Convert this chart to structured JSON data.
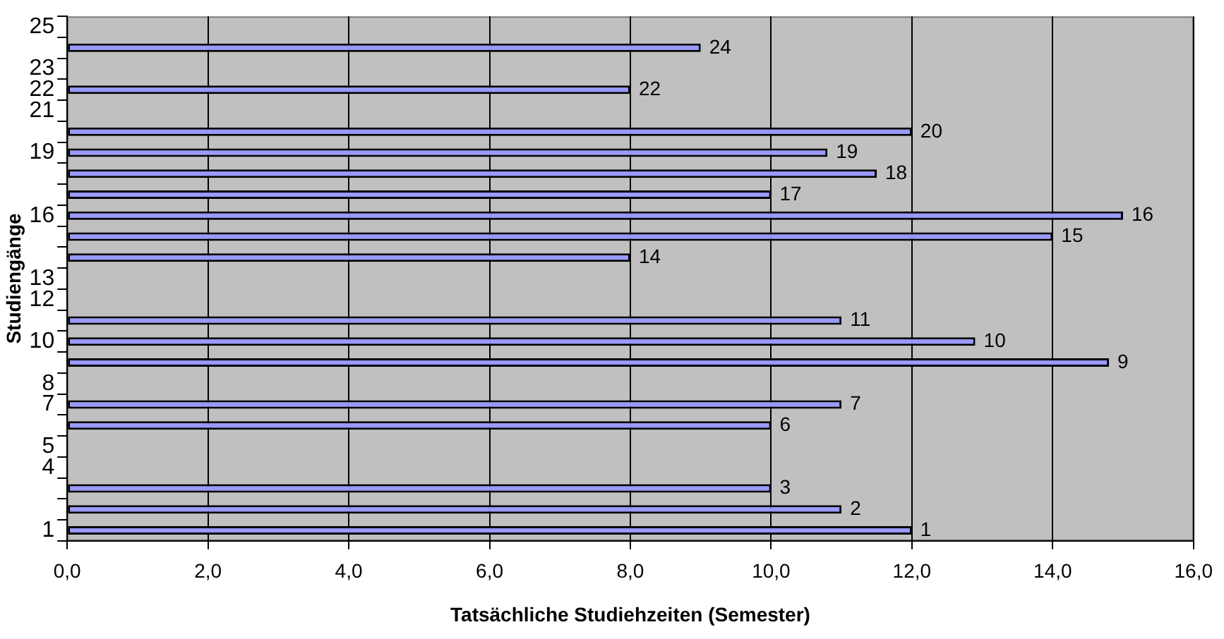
{
  "chart_data": {
    "type": "bar",
    "orientation": "horizontal",
    "xlabel": "Tatsächliche Studiehzeiten (Semester)",
    "ylabel": "Studiengänge",
    "categories": [
      "25",
      null,
      "23",
      "22",
      "21",
      null,
      "19",
      null,
      null,
      "16",
      null,
      null,
      "13",
      "12",
      null,
      "10",
      null,
      "8",
      "7",
      null,
      "5",
      "4",
      null,
      null,
      "1"
    ],
    "values": [
      null,
      9.0,
      null,
      8.0,
      null,
      12.0,
      10.8,
      11.5,
      10.0,
      15.0,
      14.0,
      8.0,
      null,
      null,
      11.0,
      12.9,
      14.8,
      null,
      11.0,
      10.0,
      null,
      null,
      10.0,
      11.0,
      12.0
    ],
    "annotations": [
      {
        "text": "24",
        "x": 9.0
      },
      {
        "text": "22",
        "x": 8.0
      },
      {
        "text": "20",
        "x": 12.0
      },
      {
        "text": "19",
        "x": 10.8
      },
      {
        "text": "18",
        "x": 11.5
      },
      {
        "text": "17",
        "x": 10.0
      },
      {
        "text": "16",
        "x": 15.0
      },
      {
        "text": "15",
        "x": 14.0
      },
      {
        "text": "14",
        "x": 8.0
      },
      {
        "text": "11",
        "x": 11.0
      },
      {
        "text": "10",
        "x": 12.9
      },
      {
        "text": "9",
        "x": 14.8
      },
      {
        "text": "7",
        "x": 11.0
      },
      {
        "text": "6",
        "x": 10.0
      },
      {
        "text": "3",
        "x": 10.0
      },
      {
        "text": "2",
        "x": 11.0
      },
      {
        "text": "1",
        "x": 12.0
      }
    ],
    "color": "#9999ff",
    "xlim": [
      0,
      16
    ],
    "xticks": [
      {
        "value": 0,
        "label": "0,0"
      },
      {
        "value": 2,
        "label": "2,0"
      },
      {
        "value": 4,
        "label": "4,0"
      },
      {
        "value": 6,
        "label": "6,0"
      },
      {
        "value": 8,
        "label": "8,0"
      },
      {
        "value": 10,
        "label": "10,0"
      },
      {
        "value": 12,
        "label": "12,0"
      },
      {
        "value": 14,
        "label": "14,0"
      },
      {
        "value": 16,
        "label": "16,0"
      }
    ],
    "grid": "x",
    "legend": false
  }
}
